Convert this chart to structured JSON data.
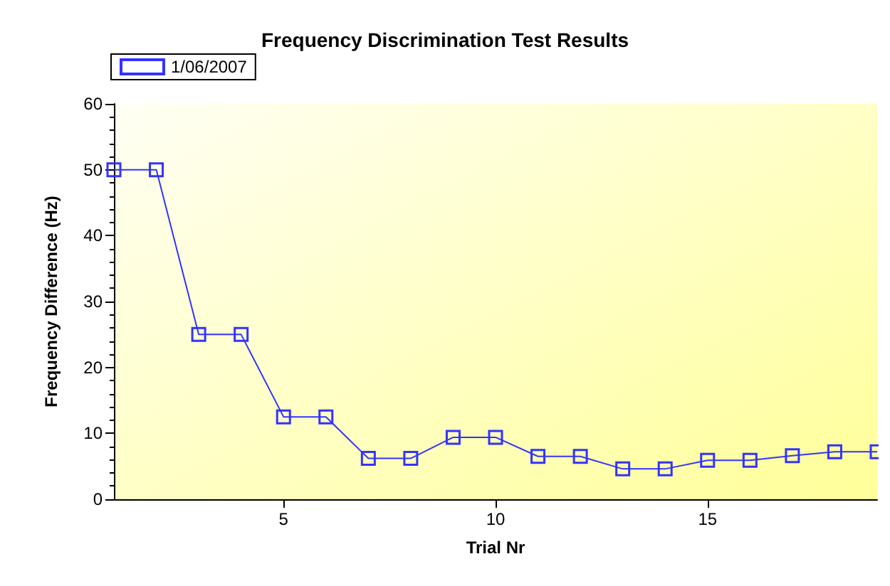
{
  "chart_data": {
    "type": "line",
    "title": "Frequency Discrimination Test Results",
    "xlabel": "Trial Nr",
    "ylabel": "Frequency Difference (Hz)",
    "x": [
      1,
      2,
      3,
      4,
      5,
      6,
      7,
      8,
      9,
      10,
      11,
      12,
      13,
      14,
      15,
      16,
      17,
      18,
      19
    ],
    "series": [
      {
        "name": "1/06/2007",
        "color": "#3333ff",
        "values": [
          50,
          50,
          25,
          25,
          12.5,
          12.5,
          6.2,
          6.2,
          9.4,
          9.4,
          6.5,
          6.5,
          4.6,
          4.6,
          5.9,
          5.9,
          6.6,
          7.2,
          7.2
        ]
      }
    ],
    "xlim": [
      1,
      19
    ],
    "xticks": [
      5,
      10,
      15
    ],
    "ylim": [
      0,
      60
    ],
    "yticks": [
      0,
      10,
      20,
      30,
      40,
      50,
      60
    ],
    "grid": false,
    "legend": "top left",
    "marker": "square",
    "line_style": "solid"
  }
}
